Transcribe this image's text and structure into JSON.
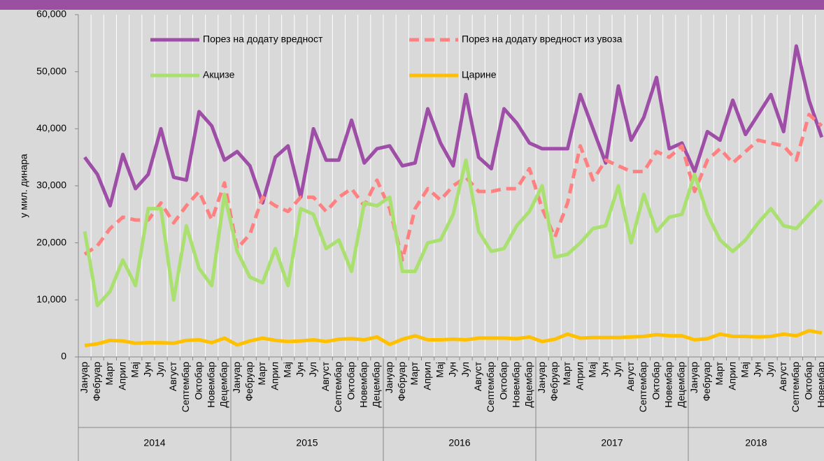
{
  "chart_data": {
    "type": "line",
    "y_label": "у мил. динара",
    "ylim": [
      0,
      60000
    ],
    "yticks": [
      0,
      {
        "value": 10000,
        "label": "10,000"
      },
      {
        "value": 20000,
        "label": "20,000"
      },
      {
        "value": 30000,
        "label": "30,000"
      },
      {
        "value": 40000,
        "label": "40,000"
      },
      {
        "value": 50000,
        "label": "50,000"
      },
      {
        "value": 60000,
        "label": "60,000"
      }
    ],
    "legend": "top",
    "year_groups": [
      {
        "label": "2014",
        "categories": [
          "Јануар",
          "Фебруар",
          "Март",
          "Април",
          "Мај",
          "Јун",
          "Јул",
          "Август",
          "Септембар",
          "Октобар",
          "Новембар",
          "Децембар"
        ]
      },
      {
        "label": "2015",
        "categories": [
          "Јануар",
          "Фебруар",
          "Март",
          "Април",
          "Мај",
          "Јун",
          "Јул",
          "Август",
          "Септембар",
          "Октобар",
          "Новембар",
          "Децембар"
        ]
      },
      {
        "label": "2016",
        "categories": [
          "Јануар",
          "Фебруар",
          "Март",
          "Април",
          "Мај",
          "Јун",
          "Јул",
          "Август",
          "Септембар",
          "Октобар",
          "Новембар",
          "Децембар"
        ]
      },
      {
        "label": "2017",
        "categories": [
          "Јануар",
          "Фебруар",
          "Март",
          "Април",
          "Мај",
          "Јун",
          "Јул",
          "Август",
          "Септембар",
          "Октобар",
          "Новембар",
          "Децембар"
        ]
      },
      {
        "label": "2018",
        "categories": [
          "Јануар",
          "Фебруар",
          "Март",
          "Април",
          "Мај",
          "Јун",
          "Јул",
          "Август",
          "Септембар",
          "Октобар",
          "Новембар"
        ]
      }
    ],
    "series": [
      {
        "name": "Порез на додату вредност",
        "color": "#9e4ea6",
        "dashed": false,
        "values": [
          35000,
          32000,
          26500,
          35500,
          29500,
          32000,
          40000,
          31500,
          31000,
          43000,
          40500,
          34500,
          36000,
          33500,
          27000,
          35000,
          37000,
          28000,
          40000,
          34500,
          34500,
          41500,
          34000,
          36500,
          37000,
          33500,
          34000,
          43500,
          37500,
          33500,
          46000,
          35000,
          33000,
          43500,
          41000,
          37500,
          36500,
          36500,
          36500,
          46000,
          40000,
          34000,
          47500,
          38000,
          42000,
          49000,
          36500,
          37500,
          32500,
          39500,
          38000,
          45000,
          39000,
          42500,
          46000,
          39500,
          54500,
          45000,
          38500
        ]
      },
      {
        "name": "Порез на додату вредност из увоза",
        "color": "#ff8080",
        "dashed": true,
        "values": [
          18000,
          19500,
          22500,
          24500,
          24000,
          24000,
          27000,
          23500,
          26500,
          29000,
          24000,
          30500,
          19000,
          21500,
          28000,
          26500,
          25500,
          28000,
          28000,
          25500,
          28000,
          29500,
          26500,
          31000,
          26000,
          17000,
          26000,
          29500,
          27500,
          30000,
          31500,
          29000,
          29000,
          29500,
          29500,
          33000,
          26000,
          21000,
          27000,
          37000,
          31000,
          34500,
          33500,
          32500,
          32500,
          36000,
          35000,
          37000,
          29000,
          34500,
          36500,
          34000,
          36000,
          38000,
          37500,
          37000,
          34500,
          42500,
          40500
        ]
      },
      {
        "name": "Акцизе",
        "color": "#a9e06f",
        "dashed": false,
        "values": [
          22000,
          9000,
          11500,
          17000,
          12500,
          26000,
          26000,
          10000,
          23000,
          15500,
          12500,
          28500,
          18500,
          14000,
          13000,
          19000,
          12500,
          26000,
          25000,
          19000,
          20500,
          15000,
          27000,
          26500,
          28000,
          15000,
          15000,
          20000,
          20500,
          25000,
          34500,
          22000,
          18500,
          19000,
          23000,
          25500,
          30000,
          17500,
          18000,
          20000,
          22500,
          23000,
          30000,
          20000,
          28500,
          22000,
          24500,
          25000,
          32000,
          25000,
          20500,
          18500,
          20500,
          23500,
          26000,
          23000,
          22500,
          25000,
          27500
        ]
      },
      {
        "name": "Царине",
        "color": "#ffc000",
        "dashed": false,
        "values": [
          2000,
          2300,
          2900,
          2800,
          2400,
          2500,
          2500,
          2400,
          2900,
          3000,
          2500,
          3300,
          2100,
          2800,
          3300,
          2900,
          2700,
          2800,
          3000,
          2700,
          3100,
          3200,
          3000,
          3500,
          2200,
          3100,
          3700,
          3000,
          3000,
          3100,
          3000,
          3300,
          3300,
          3300,
          3200,
          3500,
          2700,
          3100,
          4000,
          3300,
          3400,
          3400,
          3400,
          3500,
          3600,
          3900,
          3700,
          3700,
          3000,
          3200,
          4000,
          3600,
          3600,
          3500,
          3600,
          4000,
          3700,
          4600,
          4200
        ]
      }
    ]
  }
}
